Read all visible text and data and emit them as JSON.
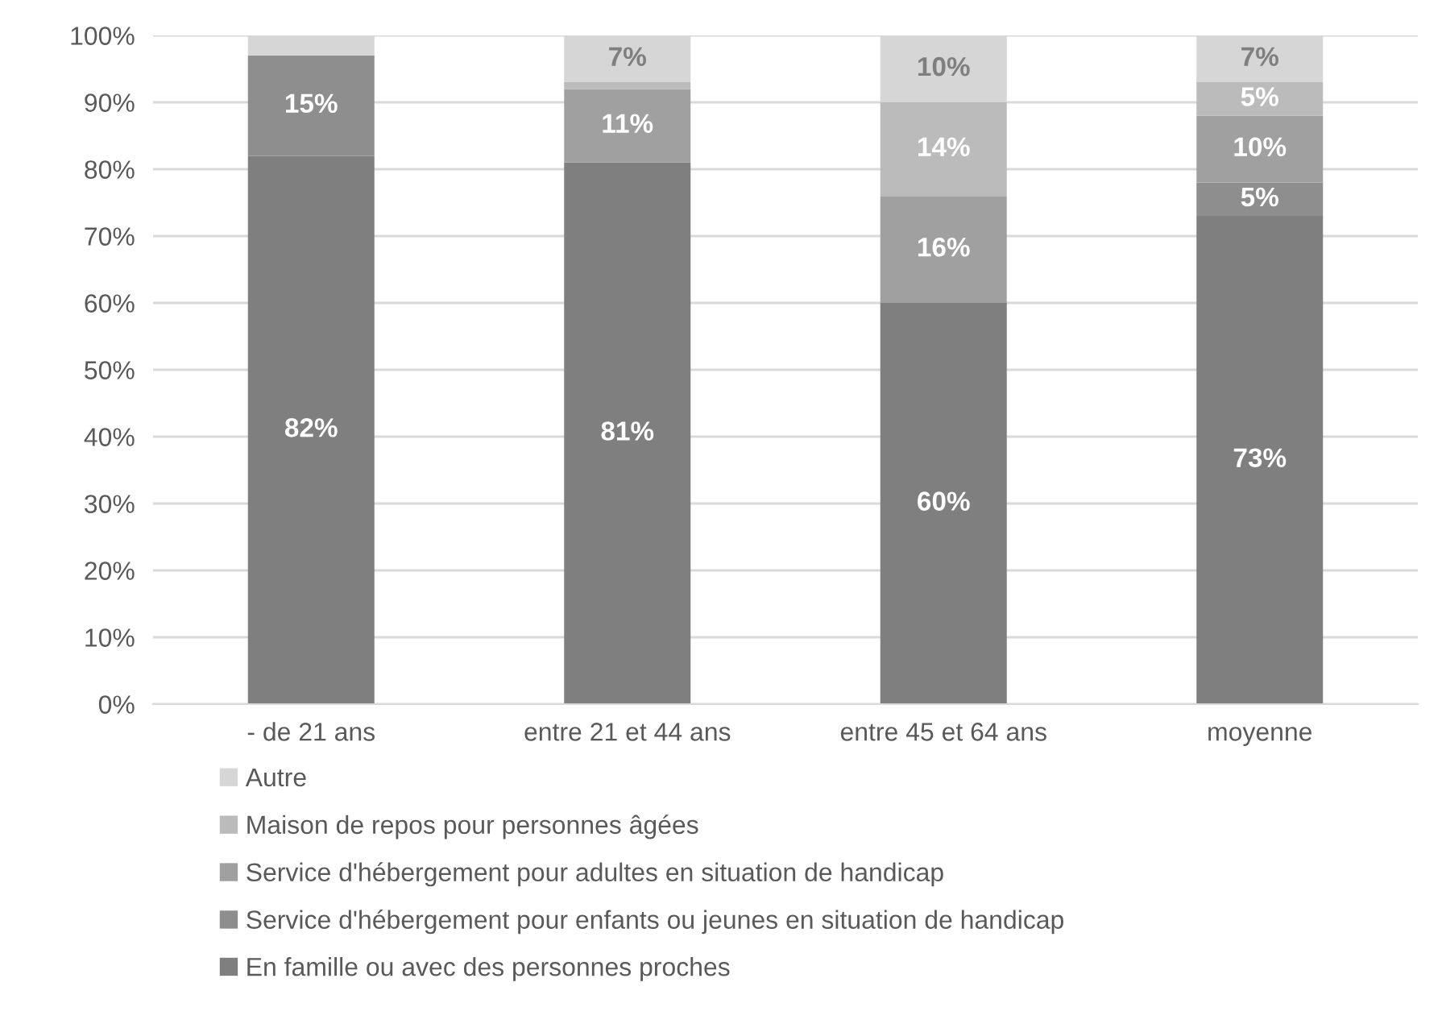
{
  "chart_data": {
    "type": "bar",
    "stacked": true,
    "categories": [
      "- de 21 ans",
      "entre 21 et 44 ans",
      "entre 45 et 64 ans",
      "moyenne"
    ],
    "series": [
      {
        "name": "En famille ou avec des personnes proches",
        "color": "#7f7f7f",
        "values": [
          82,
          81,
          60,
          73
        ],
        "value_labels": [
          "82%",
          "81%",
          "60%",
          "73%"
        ]
      },
      {
        "name": "Service d'hébergement pour enfants ou jeunes en situation de handicap",
        "color": "#8e8e8e",
        "values": [
          15,
          0,
          0,
          5
        ],
        "value_labels": [
          "15%",
          null,
          null,
          "5%"
        ]
      },
      {
        "name": "Service d'hébergement pour adultes en situation de handicap",
        "color": "#a0a0a0",
        "values": [
          0,
          11,
          16,
          10
        ],
        "value_labels": [
          null,
          "11%",
          "16%",
          "10%"
        ]
      },
      {
        "name": "Maison de repos pour personnes âgées",
        "color": "#bbbbbb",
        "values": [
          0,
          1,
          14,
          5
        ],
        "value_labels": [
          null,
          null,
          "14%",
          "5%"
        ]
      },
      {
        "name": "Autre",
        "color": "#d6d6d6",
        "values": [
          3,
          7,
          10,
          7
        ],
        "value_labels": [
          null,
          "7%",
          "10%",
          "7%"
        ]
      }
    ],
    "ylim": [
      0,
      100
    ],
    "yticks": [
      {
        "value": 0,
        "label": "0%"
      },
      {
        "value": 10,
        "label": "10%"
      },
      {
        "value": 20,
        "label": "20%"
      },
      {
        "value": 30,
        "label": "30%"
      },
      {
        "value": 40,
        "label": "40%"
      },
      {
        "value": 50,
        "label": "50%"
      },
      {
        "value": 60,
        "label": "60%"
      },
      {
        "value": 70,
        "label": "70%"
      },
      {
        "value": 80,
        "label": "80%"
      },
      {
        "value": 90,
        "label": "90%"
      },
      {
        "value": 100,
        "label": "100%"
      }
    ],
    "grid": "y",
    "legend": "bottom"
  }
}
